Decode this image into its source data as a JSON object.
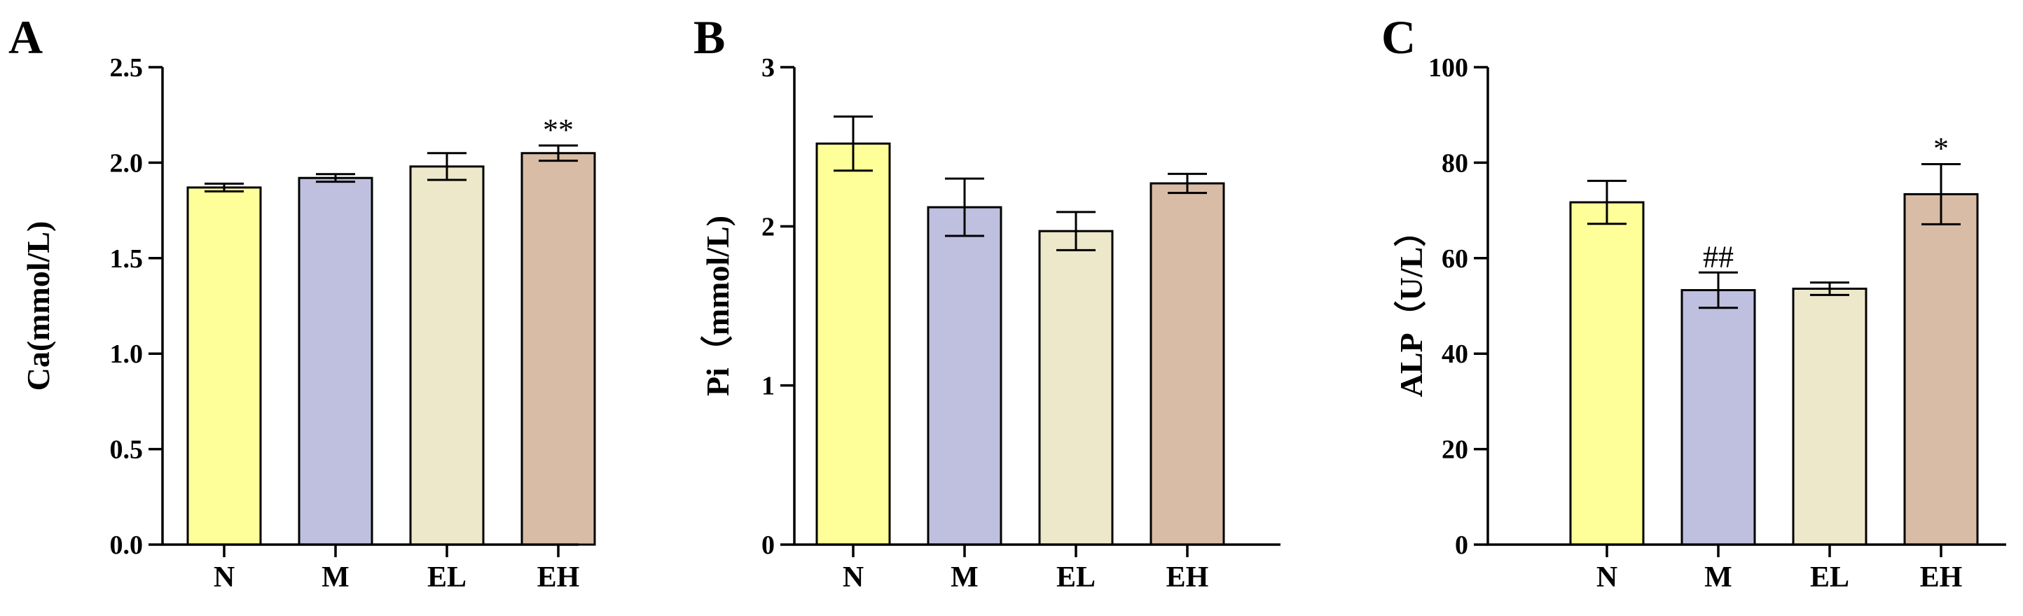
{
  "chart_data": [
    {
      "type": "bar",
      "panel_label": "A",
      "title": "",
      "xlabel": "",
      "ylabel": "Ca(mmol/L)",
      "ylim": [
        0,
        2.5
      ],
      "yticks": [
        0.0,
        0.5,
        1.0,
        1.5,
        2.0,
        2.5
      ],
      "ytick_labels": [
        "0.0",
        "0.5",
        "1.0",
        "1.5",
        "2.0",
        "2.5"
      ],
      "categories": [
        "N",
        "M",
        "EL",
        "EH"
      ],
      "values": [
        1.87,
        1.92,
        1.98,
        2.05
      ],
      "errors": [
        0.02,
        0.02,
        0.07,
        0.04
      ],
      "annotations": [
        "",
        "",
        "",
        "**"
      ],
      "colors": [
        "#FFFF99",
        "#BFBFDF",
        "#EDE8CA",
        "#D9BCA6"
      ],
      "grid": false
    },
    {
      "type": "bar",
      "panel_label": "B",
      "title": "",
      "xlabel": "",
      "ylabel": "Pi（mmol/L)",
      "ylim": [
        0,
        3
      ],
      "yticks": [
        0,
        1,
        2,
        3
      ],
      "ytick_labels": [
        "0",
        "1",
        "2",
        "3"
      ],
      "categories": [
        "N",
        "M",
        "EL",
        "EH"
      ],
      "values": [
        2.52,
        2.12,
        1.97,
        2.27
      ],
      "errors": [
        0.17,
        0.18,
        0.12,
        0.06
      ],
      "annotations": [
        "",
        "",
        "",
        ""
      ],
      "colors": [
        "#FFFF99",
        "#BFBFDF",
        "#EDE8CA",
        "#D9BCA6"
      ],
      "grid": false
    },
    {
      "type": "bar",
      "panel_label": "C",
      "title": "",
      "xlabel": "",
      "ylabel": "ALP（U/L）",
      "ylim": [
        0,
        100
      ],
      "yticks": [
        0,
        20,
        40,
        60,
        80,
        100
      ],
      "ytick_labels": [
        "0",
        "20",
        "40",
        "60",
        "80",
        "100"
      ],
      "categories": [
        "N",
        "M",
        "EL",
        "EH"
      ],
      "values": [
        71.7,
        53.3,
        53.6,
        73.4
      ],
      "errors": [
        4.5,
        3.7,
        1.3,
        6.3
      ],
      "annotations": [
        "",
        "##",
        "",
        "*"
      ],
      "colors": [
        "#FFFF99",
        "#BFBFDF",
        "#EDE8CA",
        "#D9BCA6"
      ],
      "grid": false
    }
  ]
}
